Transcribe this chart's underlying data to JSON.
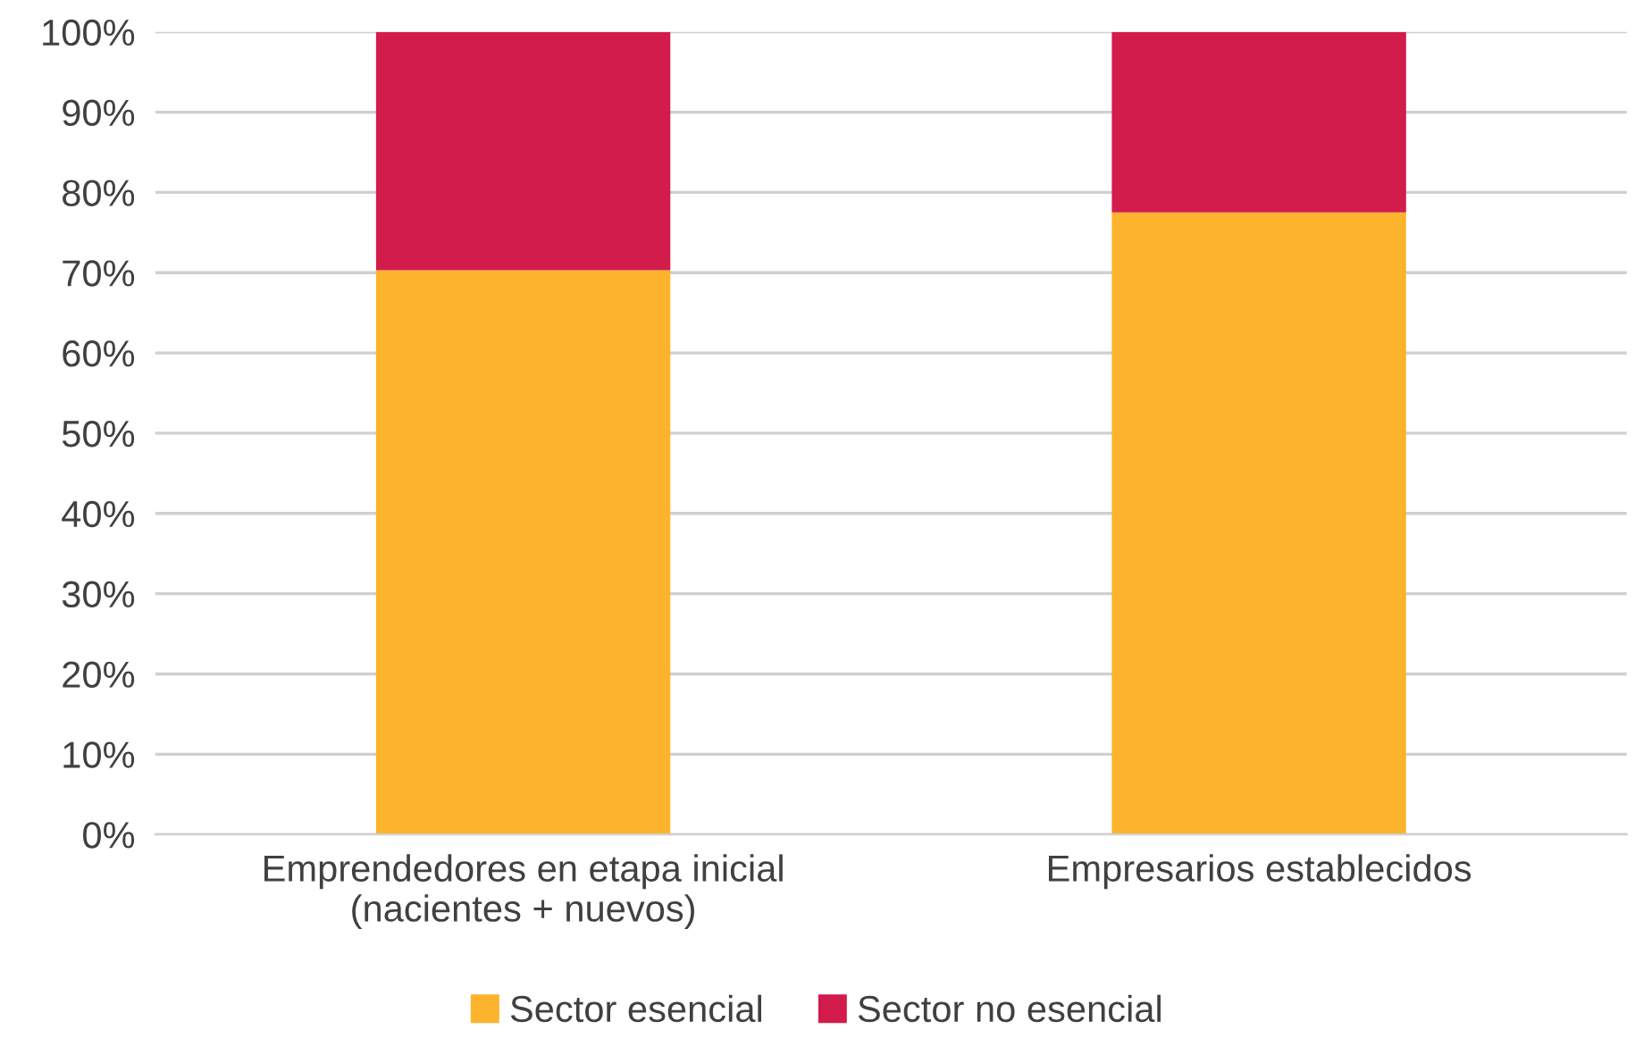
{
  "chart_data": {
    "type": "bar",
    "stacked": true,
    "categories": [
      "Emprendedores en etapa inicial\n(nacientes + nuevos)",
      "Empresarios establecidos"
    ],
    "series": [
      {
        "name": "Sector esencial",
        "color": "#fdb32b",
        "values": [
          70.3,
          77.5
        ]
      },
      {
        "name": "Sector no esencial",
        "color": "#d21c4b",
        "values": [
          29.7,
          22.5
        ]
      }
    ],
    "ylim": [
      0,
      100
    ],
    "yticks": [
      {
        "value": 0,
        "label": "0%"
      },
      {
        "value": 10,
        "label": "10%"
      },
      {
        "value": 20,
        "label": "20%"
      },
      {
        "value": 30,
        "label": "30%"
      },
      {
        "value": 40,
        "label": "40%"
      },
      {
        "value": 50,
        "label": "50%"
      },
      {
        "value": 60,
        "label": "60%"
      },
      {
        "value": 70,
        "label": "70%"
      },
      {
        "value": 80,
        "label": "80%"
      },
      {
        "value": 90,
        "label": "90%"
      },
      {
        "value": 100,
        "label": "100%"
      }
    ],
    "grid": "y",
    "legend": "bottom"
  }
}
